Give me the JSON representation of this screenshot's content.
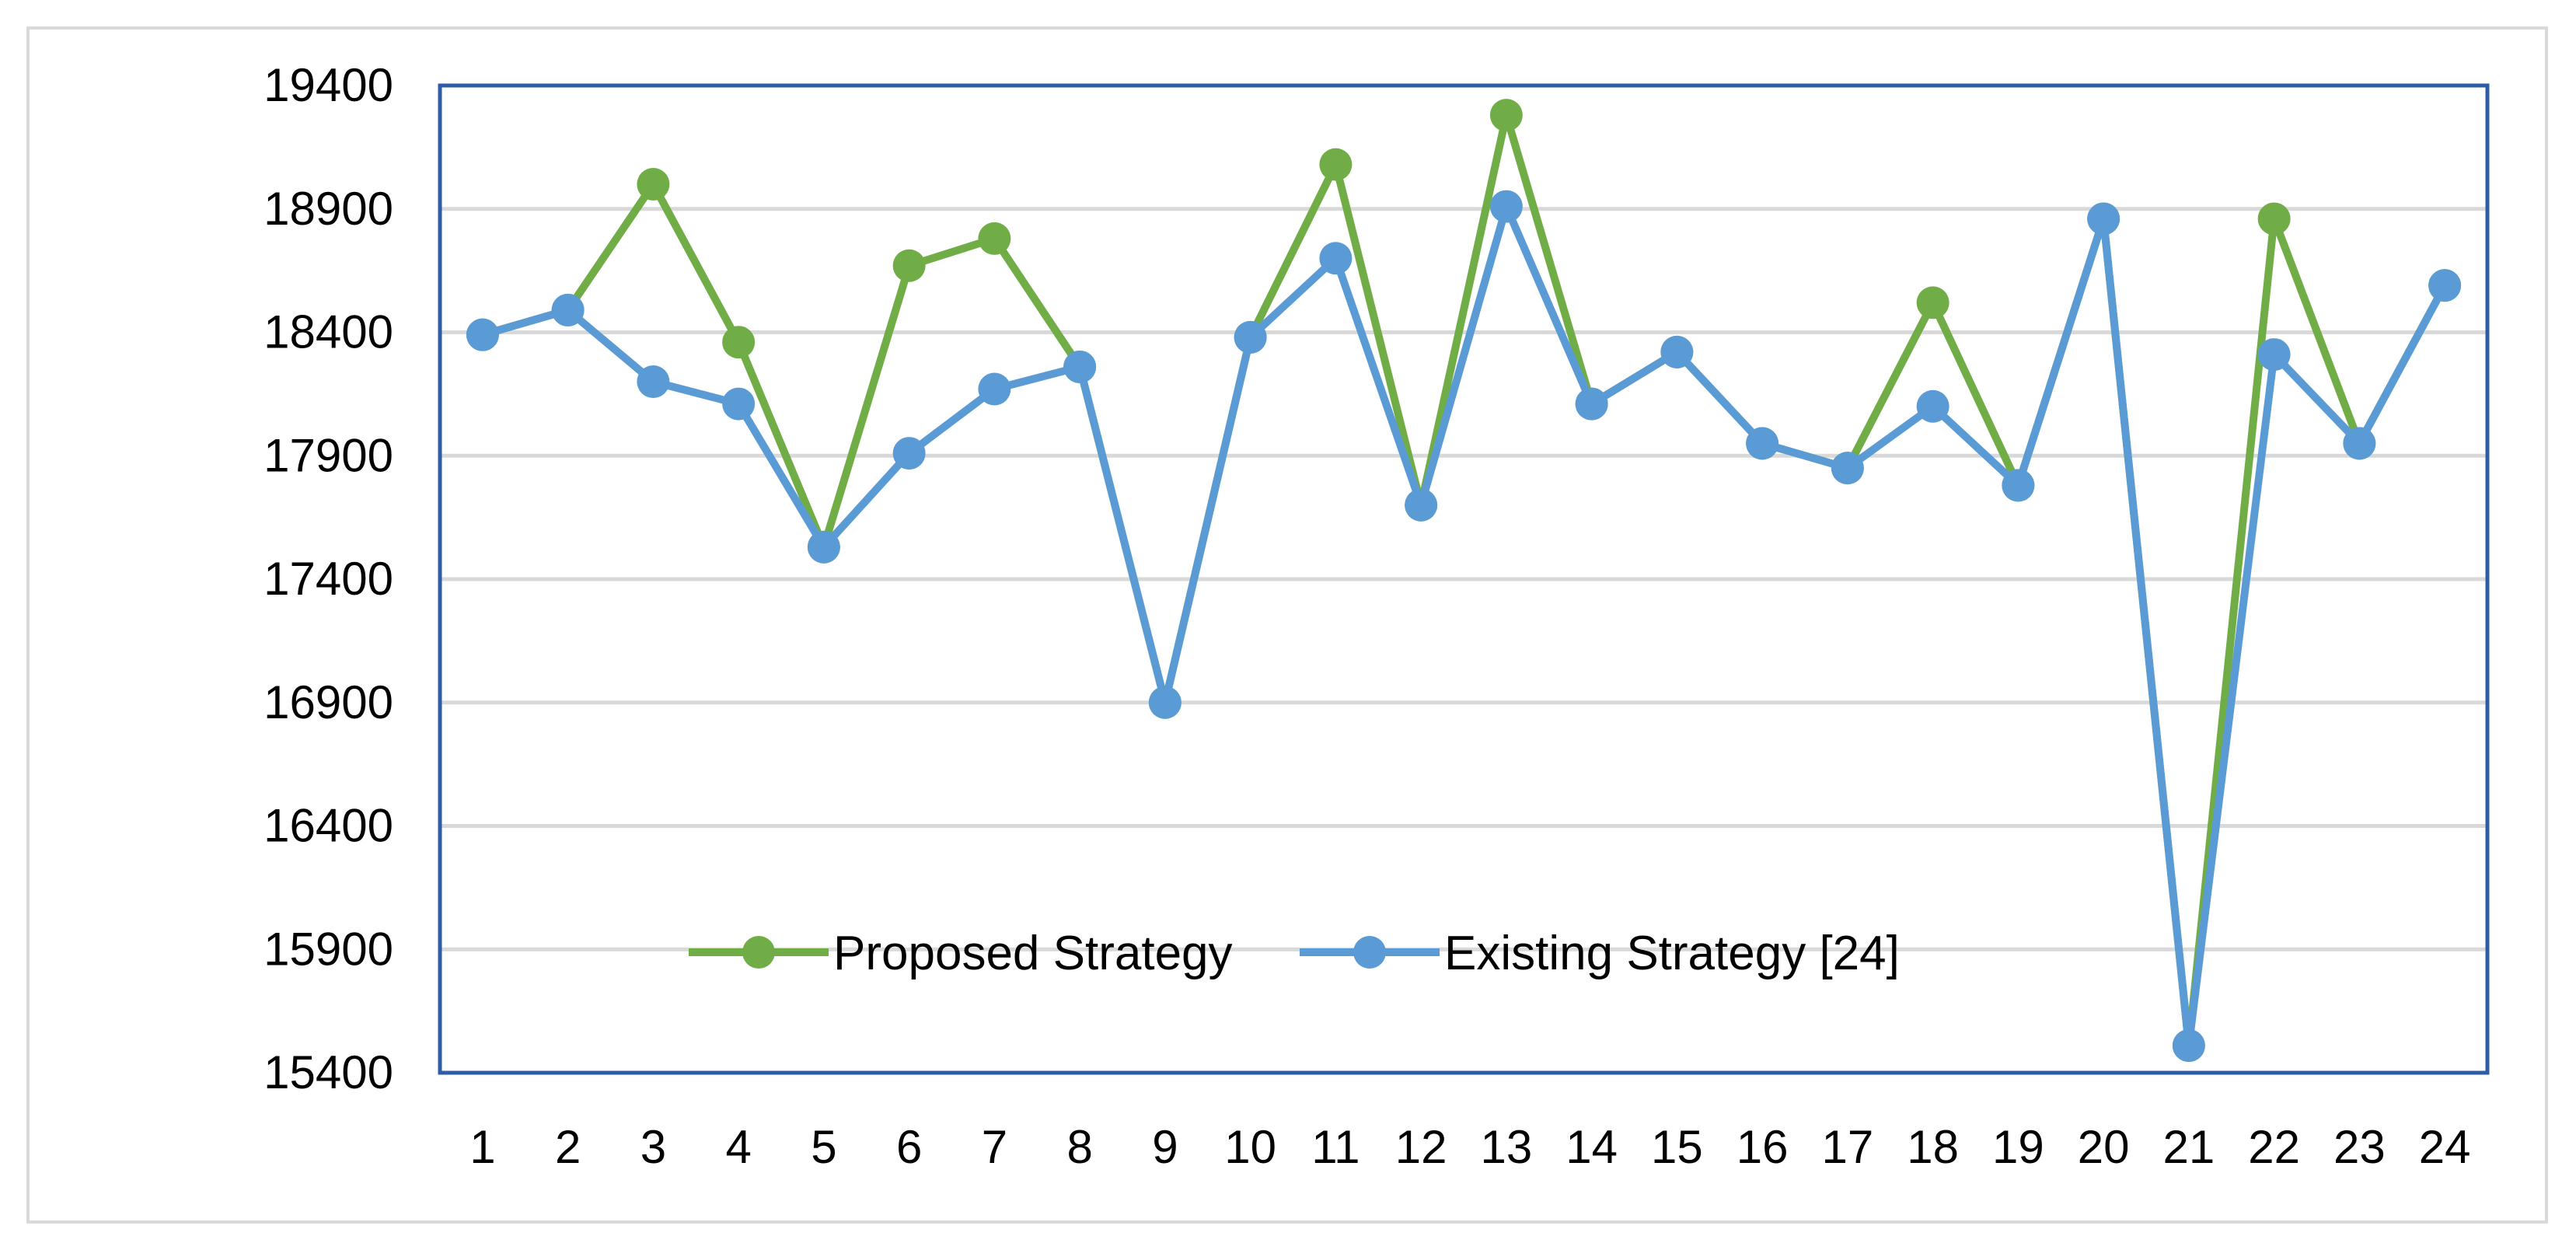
{
  "chart_data": {
    "type": "line",
    "title": "",
    "xlabel": "",
    "ylabel": "",
    "categories": [
      "1",
      "2",
      "3",
      "4",
      "5",
      "6",
      "7",
      "8",
      "9",
      "10",
      "11",
      "12",
      "13",
      "14",
      "15",
      "16",
      "17",
      "18",
      "19",
      "20",
      "21",
      "22",
      "23",
      "24"
    ],
    "ylim": [
      15400,
      19400
    ],
    "yticks": [
      "15400",
      "15900",
      "16400",
      "16900",
      "17400",
      "17900",
      "18400",
      "18900",
      "19400"
    ],
    "grid": true,
    "legend_position": "bottom-left inside plot",
    "series": [
      {
        "name": "Proposed Strategy",
        "color": "#70ad47",
        "values": [
          18390,
          18490,
          19000,
          18360,
          17530,
          18670,
          18780,
          18260,
          16900,
          18380,
          19080,
          17700,
          19280,
          18110,
          18320,
          17950,
          17850,
          18520,
          17780,
          18860,
          15510,
          18860,
          17950,
          18590
        ]
      },
      {
        "name": "Existing Strategy [24]",
        "color": "#5b9bd5",
        "values": [
          18390,
          18490,
          18200,
          18110,
          17530,
          17910,
          18170,
          18260,
          16900,
          18380,
          18700,
          17700,
          18910,
          18110,
          18320,
          17950,
          17850,
          18100,
          17780,
          18860,
          15510,
          18310,
          17950,
          18590
        ]
      }
    ]
  }
}
